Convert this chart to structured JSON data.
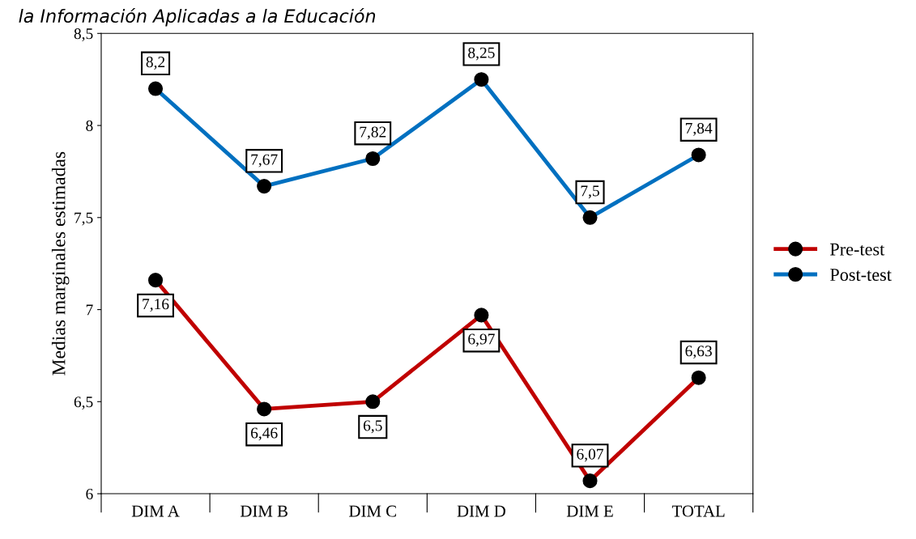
{
  "chart_data": {
    "type": "line",
    "title": "la Información Aplicadas a la Educación",
    "ylabel": "Medias marginales estimadas",
    "categories": [
      "DIM A",
      "DIM B",
      "DIM C",
      "DIM D",
      "DIM E",
      "TOTAL"
    ],
    "series": [
      {
        "name": "Pre-test",
        "color": "#c00000",
        "values": [
          7.16,
          6.46,
          6.5,
          6.97,
          6.07,
          6.63
        ],
        "value_labels": [
          "7,16",
          "6,46",
          "6,5",
          "6,97",
          "6,07",
          "6,63"
        ]
      },
      {
        "name": "Post-test",
        "color": "#0070c0",
        "values": [
          8.2,
          7.67,
          7.82,
          8.25,
          7.5,
          7.84
        ],
        "value_labels": [
          "8,2",
          "7,67",
          "7,82",
          "8,25",
          "7,5",
          "7,84"
        ]
      }
    ],
    "ylim": [
      6,
      8.5
    ],
    "yticks": [
      {
        "value": 6,
        "label": "6"
      },
      {
        "value": 6.5,
        "label": "6,5"
      },
      {
        "value": 7,
        "label": "7"
      },
      {
        "value": 7.5,
        "label": "7,5"
      },
      {
        "value": 8,
        "label": "8"
      },
      {
        "value": 8.5,
        "label": "8,5"
      }
    ],
    "marker": "circle",
    "line_style": "solid",
    "legend": "right",
    "grid": false
  }
}
